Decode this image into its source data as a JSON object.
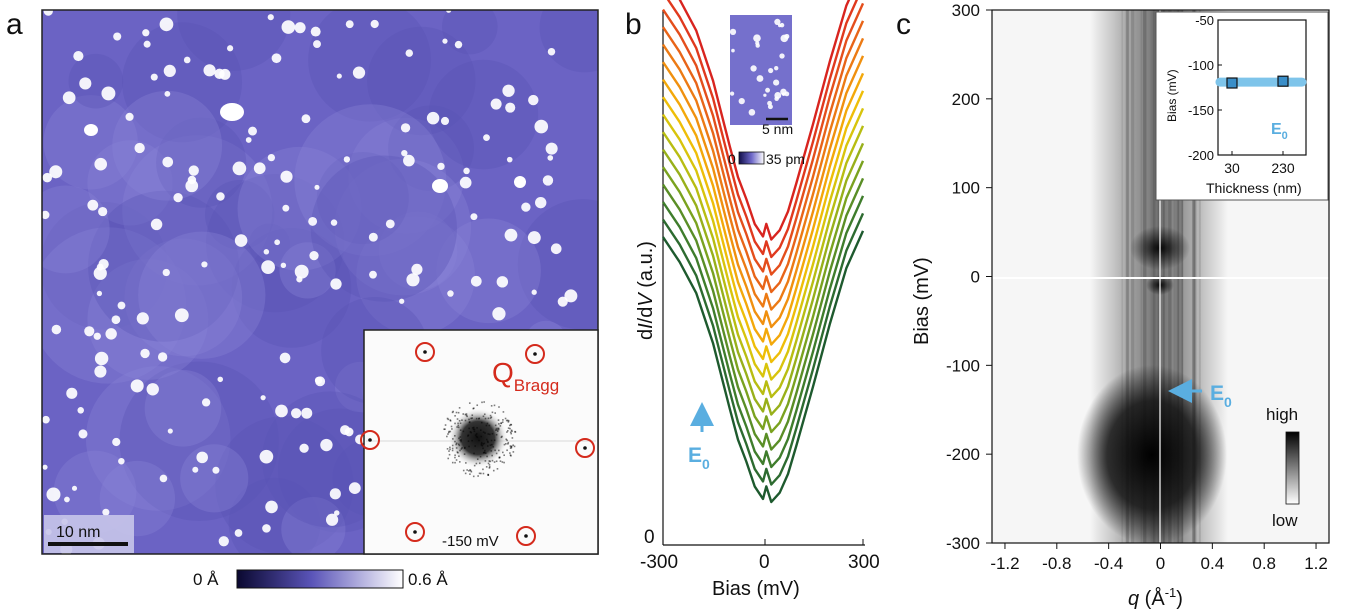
{
  "panels": {
    "a": {
      "letter": "a",
      "scalebar_label": "10 nm",
      "inset_bias_label": "-150 mV",
      "bragg_main": "Q",
      "bragg_sub": "Bragg",
      "colorbar_min_label": "0 Å",
      "colorbar_max_label": "0.6 Å"
    },
    "b": {
      "letter": "b",
      "ylabel_parts": [
        "d",
        "I",
        "/d",
        "V",
        " (a.u.)"
      ],
      "xlabel": "Bias (mV)",
      "y_zero_label": "0",
      "inset_scale_label": "5 nm",
      "inset_colorbar_min": "0",
      "inset_colorbar_max": "35 pm",
      "arrow_label": "E",
      "arrow_label_sub": "0"
    },
    "c": {
      "letter": "c",
      "ylabel": "Bias (mV)",
      "xlabel_q": "q",
      "xlabel_rest": " (Å",
      "xlabel_sup": "-1",
      "xlabel_close": ")",
      "arrow_label": "E",
      "arrow_label_sub": "0",
      "colorbar_high": "high",
      "colorbar_low": "low",
      "inset_ylabel": "Bias (mV)",
      "inset_xlabel": "Thickness (nm)",
      "inset_series_label": "E",
      "inset_series_sub": "0"
    }
  },
  "colors": {
    "stm_base": "#6b63c4",
    "stm_bright": "#ffffff",
    "bragg_red": "#d42a1c",
    "arrow_blue": "#5aaee0",
    "inset_band": "#7ec4ea",
    "inset_marker": "#3a8ec8"
  },
  "chart_data": [
    {
      "type": "line",
      "panel": "b",
      "xlabel": "Bias (mV)",
      "ylabel": "dI/dV (a.u.)",
      "xlim": [
        -300,
        300
      ],
      "x_ticks": [
        "-300",
        "0",
        "300"
      ],
      "series_count": 16,
      "series_colors": [
        "#1e5a2e",
        "#2d6b30",
        "#3f7d2c",
        "#5a8e26",
        "#7aa21f",
        "#98b01a",
        "#b8bd12",
        "#d8c40c",
        "#eebe08",
        "#f3a80a",
        "#f0900f",
        "#ec7a14",
        "#e86418",
        "#e44e1c",
        "#e0391e",
        "#d8241f"
      ],
      "x": [
        -300,
        -250,
        -200,
        -150,
        -100,
        -75,
        -50,
        -25,
        0,
        10,
        25,
        50,
        75,
        100,
        150,
        200,
        250,
        300
      ],
      "base_shape": [
        1.0,
        0.92,
        0.82,
        0.66,
        0.45,
        0.35,
        0.28,
        0.2,
        0.16,
        0.2,
        0.15,
        0.18,
        0.24,
        0.33,
        0.52,
        0.72,
        0.9,
        1.02
      ]
    },
    {
      "type": "heatmap",
      "panel": "c",
      "xlabel": "q (Å-1)",
      "ylabel": "Bias (mV)",
      "xlim": [
        -1.3,
        1.3
      ],
      "ylim": [
        -300,
        300
      ],
      "x_ticks": [
        -1.2,
        -0.8,
        -0.4,
        0,
        0.4,
        0.8,
        1.2
      ],
      "y_ticks": [
        -300,
        -200,
        -100,
        0,
        100,
        200,
        300
      ],
      "E0_bias": -120
    },
    {
      "type": "scatter",
      "panel": "c-inset",
      "xlabel": "Thickness (nm)",
      "ylabel": "Bias (mV)",
      "ylim": [
        -200,
        -50
      ],
      "y_ticks": [
        -200,
        -150,
        -100,
        -50
      ],
      "categories": [
        "30",
        "230"
      ],
      "values": [
        -120,
        -118
      ],
      "series_name": "E0"
    }
  ]
}
